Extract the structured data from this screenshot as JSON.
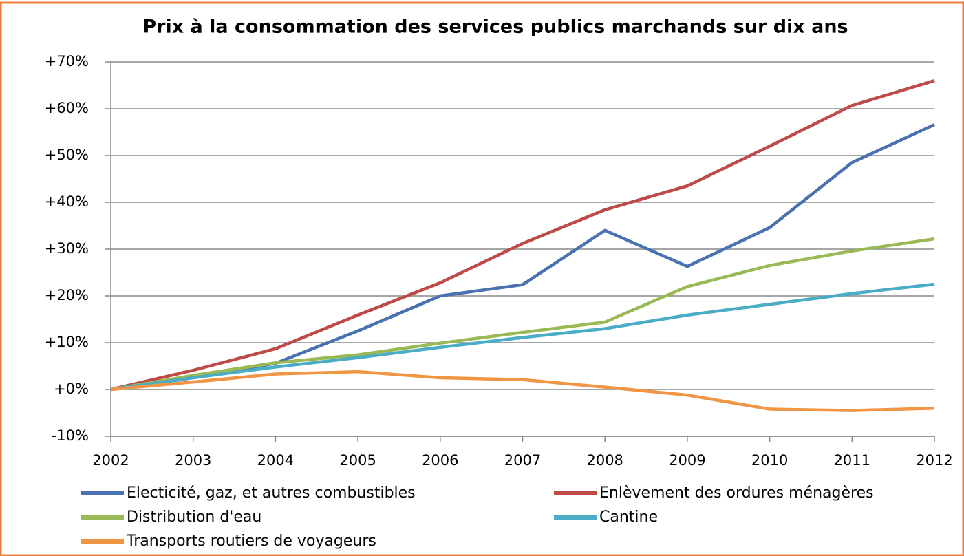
{
  "chart_data": {
    "type": "line",
    "title": "Prix à la consommation des services publics marchands sur dix ans",
    "x": [
      2002,
      2003,
      2004,
      2005,
      2006,
      2007,
      2008,
      2009,
      2010,
      2011,
      2012
    ],
    "xlim": [
      2002,
      2012
    ],
    "xticks": [
      2002,
      2003,
      2004,
      2005,
      2006,
      2007,
      2008,
      2009,
      2010,
      2011,
      2012
    ],
    "ylim": [
      -10,
      70
    ],
    "yticks": [
      {
        "value": -10,
        "label": "-10%"
      },
      {
        "value": 0,
        "label": "+0%"
      },
      {
        "value": 10,
        "label": "+10%"
      },
      {
        "value": 20,
        "label": "+20%"
      },
      {
        "value": 30,
        "label": "+30%"
      },
      {
        "value": 40,
        "label": "+40%"
      },
      {
        "value": 50,
        "label": "+50%"
      },
      {
        "value": 60,
        "label": "+60%"
      },
      {
        "value": 70,
        "label": "+70%"
      }
    ],
    "grid": true,
    "legend": "bottom",
    "series": [
      {
        "name": "Electicité, gaz, et autres combustibles",
        "color": "#4a72b0",
        "values": [
          0,
          2.5,
          5.6,
          12.5,
          20,
          22.4,
          34,
          26.3,
          34.6,
          48.5,
          56.6
        ]
      },
      {
        "name": "Enlèvement des ordures ménagères",
        "color": "#be4b48",
        "values": [
          0,
          4.1,
          8.7,
          15.9,
          22.8,
          31.2,
          38.4,
          43.5,
          52,
          60.7,
          66
        ]
      },
      {
        "name": "Distribution d'eau",
        "color": "#98b954",
        "values": [
          0,
          3,
          5.7,
          7.4,
          9.9,
          12.2,
          14.4,
          22,
          26.5,
          29.6,
          32.2
        ]
      },
      {
        "name": "Cantine",
        "color": "#4aacc5",
        "values": [
          0,
          2.5,
          4.8,
          6.8,
          9,
          11.1,
          13,
          15.9,
          18.2,
          20.5,
          22.5
        ]
      },
      {
        "name": "Transports routiers de voyageurs",
        "color": "#f09544",
        "values": [
          0,
          1.6,
          3.3,
          3.8,
          2.5,
          2.1,
          0.5,
          -1.2,
          -4.2,
          -4.5,
          -4.0
        ]
      }
    ]
  }
}
